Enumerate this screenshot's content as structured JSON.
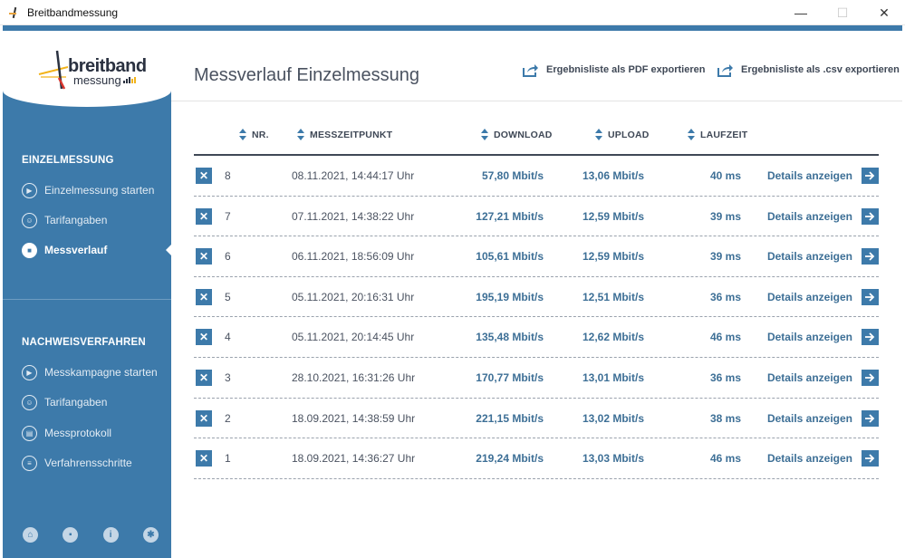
{
  "window": {
    "title": "Breitbandmessung",
    "minimize": "—",
    "maximize": "☐",
    "close": "✕"
  },
  "logo": {
    "line1": "breitband",
    "line2": "messung"
  },
  "sidebar": {
    "section1": "EINZELMESSUNG",
    "section1_items": [
      {
        "label": "Einzelmessung starten",
        "icon": "play-circle-icon"
      },
      {
        "label": "Tarifangaben",
        "icon": "user-card-icon"
      },
      {
        "label": "Messverlauf",
        "icon": "history-icon",
        "active": true
      }
    ],
    "section2": "NACHWEISVERFAHREN",
    "section2_items": [
      {
        "label": "Messkampagne starten",
        "icon": "play-circle-icon"
      },
      {
        "label": "Tarifangaben",
        "icon": "user-card-icon"
      },
      {
        "label": "Messprotokoll",
        "icon": "protocol-icon"
      },
      {
        "label": "Verfahrensschritte",
        "icon": "list-icon"
      }
    ],
    "bottom_icons": [
      "home-icon",
      "chat-icon",
      "info-icon",
      "gear-icon"
    ]
  },
  "main": {
    "title": "Messverlauf Einzelmessung",
    "export_pdf": "Ergebnisliste als PDF exportieren",
    "export_csv": "Ergebnisliste als .csv exportieren",
    "columns": {
      "nr": "NR.",
      "time": "MESSZEITPUNKT",
      "download": "DOWNLOAD",
      "upload": "UPLOAD",
      "laufzeit": "LAUFZEIT"
    },
    "details_label": "Details anzeigen",
    "rows": [
      {
        "nr": "8",
        "time": "08.11.2021, 14:44:17 Uhr",
        "download": "57,80 Mbit/s",
        "upload": "13,06 Mbit/s",
        "laufzeit": "40 ms"
      },
      {
        "nr": "7",
        "time": "07.11.2021, 14:38:22 Uhr",
        "download": "127,21 Mbit/s",
        "upload": "12,59 Mbit/s",
        "laufzeit": "39 ms"
      },
      {
        "nr": "6",
        "time": "06.11.2021, 18:56:09 Uhr",
        "download": "105,61 Mbit/s",
        "upload": "12,59 Mbit/s",
        "laufzeit": "39 ms"
      },
      {
        "nr": "5",
        "time": "05.11.2021, 20:16:31 Uhr",
        "download": "195,19 Mbit/s",
        "upload": "12,51 Mbit/s",
        "laufzeit": "36 ms"
      },
      {
        "nr": "4",
        "time": "05.11.2021, 20:14:45 Uhr",
        "download": "135,48 Mbit/s",
        "upload": "12,62 Mbit/s",
        "laufzeit": "46 ms"
      },
      {
        "nr": "3",
        "time": "28.10.2021, 16:31:26 Uhr",
        "download": "170,77 Mbit/s",
        "upload": "13,01 Mbit/s",
        "laufzeit": "36 ms"
      },
      {
        "nr": "2",
        "time": "18.09.2021, 14:38:59 Uhr",
        "download": "221,15 Mbit/s",
        "upload": "13,02 Mbit/s",
        "laufzeit": "38 ms"
      },
      {
        "nr": "1",
        "time": "18.09.2021, 14:36:27 Uhr",
        "download": "219,24 Mbit/s",
        "upload": "13,03 Mbit/s",
        "laufzeit": "46 ms"
      }
    ]
  },
  "colors": {
    "accent": "#3d7aaa",
    "text": "#4a5260",
    "value": "#3d6f96"
  }
}
